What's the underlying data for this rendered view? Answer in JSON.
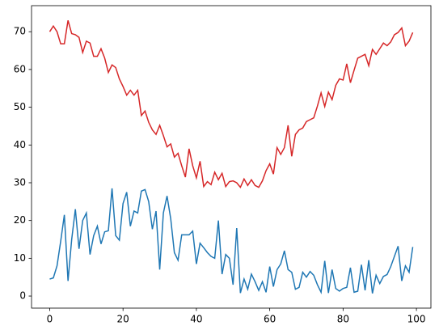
{
  "chart_data": {
    "type": "line",
    "x": [
      0,
      1,
      2,
      3,
      4,
      5,
      6,
      7,
      8,
      9,
      10,
      11,
      12,
      13,
      14,
      15,
      16,
      17,
      18,
      19,
      20,
      21,
      22,
      23,
      24,
      25,
      26,
      27,
      28,
      29,
      30,
      31,
      32,
      33,
      34,
      35,
      36,
      37,
      38,
      39,
      40,
      41,
      42,
      43,
      44,
      45,
      46,
      47,
      48,
      49,
      50,
      51,
      52,
      53,
      54,
      55,
      56,
      57,
      58,
      59,
      60,
      61,
      62,
      63,
      64,
      65,
      66,
      67,
      68,
      69,
      70,
      71,
      72,
      73,
      74,
      75,
      76,
      77,
      78,
      79,
      80,
      81,
      82,
      83,
      84,
      85,
      86,
      87,
      88,
      89,
      90,
      91,
      92,
      93,
      94,
      95,
      96,
      97,
      98,
      99
    ],
    "series": [
      {
        "color": "#d62728",
        "values": [
          70,
          71.5,
          70,
          66.8,
          66.8,
          73,
          69.5,
          69.2,
          68.5,
          64.5,
          67.5,
          67,
          63.5,
          63.5,
          65.5,
          63,
          59.2,
          61.2,
          60.5,
          57.5,
          55.5,
          53.2,
          54.5,
          53.2,
          54.5,
          47.8,
          49,
          46,
          44,
          42.8,
          45.2,
          42.5,
          39.5,
          40.3,
          36.8,
          37.8,
          34.5,
          31.5,
          39,
          34.5,
          31.3,
          35.7,
          29,
          30.3,
          29.5,
          32.8,
          30.8,
          32.5,
          29,
          30.3,
          30.5,
          30,
          28.8,
          31,
          29.3,
          30.8,
          29.3,
          28.8,
          30.5,
          33.2,
          35,
          32.3,
          39.3,
          37.5,
          39.3,
          45.2,
          37,
          42.8,
          44,
          44.5,
          46.2,
          46.7,
          47.2,
          50.3,
          53.8,
          50.2,
          54,
          52,
          55.8,
          57.5,
          57.2,
          61.5,
          56.5,
          59.8,
          63,
          63.5,
          64,
          61,
          65.3,
          64,
          65.5,
          67,
          66.3,
          67.3,
          69.2,
          69.8,
          71,
          66.3,
          67.5,
          69.8
        ]
      },
      {
        "color": "#1f77b4",
        "values": [
          4.5,
          4.8,
          8,
          14.5,
          21.5,
          4,
          15,
          23,
          12.5,
          20,
          22,
          11,
          16,
          18.5,
          13.8,
          17,
          17.3,
          28.5,
          16,
          14.8,
          24.5,
          27.5,
          18.5,
          22.5,
          22,
          27.8,
          28.2,
          25,
          17.7,
          22.5,
          7,
          22,
          26.5,
          20.5,
          11.5,
          9.5,
          16.2,
          16.2,
          16.2,
          17.2,
          8.5,
          14,
          12.8,
          11.5,
          10.5,
          10,
          20,
          5.8,
          11,
          10,
          3,
          18,
          0.8,
          4.5,
          1.8,
          5.8,
          3.8,
          1.5,
          3.8,
          1,
          7.8,
          2.5,
          7,
          8.5,
          12,
          7,
          6.3,
          1.8,
          2.3,
          6.3,
          5,
          6.5,
          5.5,
          3,
          1,
          9.3,
          0.8,
          7,
          2,
          1.3,
          2,
          2.3,
          7.5,
          1,
          1.3,
          8.3,
          1.5,
          9.5,
          0.7,
          5.5,
          3.3,
          5.2,
          5.7,
          7.8,
          10.5,
          13.2,
          4,
          8,
          6.3,
          13
        ]
      }
    ],
    "xlim": [
      -4.95,
      103.95
    ],
    "xticks": [
      0,
      20,
      40,
      60,
      80,
      100
    ],
    "ylim": [
      -3.2,
      76.9
    ],
    "yticks": [
      0,
      10,
      20,
      30,
      40,
      50,
      60,
      70
    ]
  }
}
